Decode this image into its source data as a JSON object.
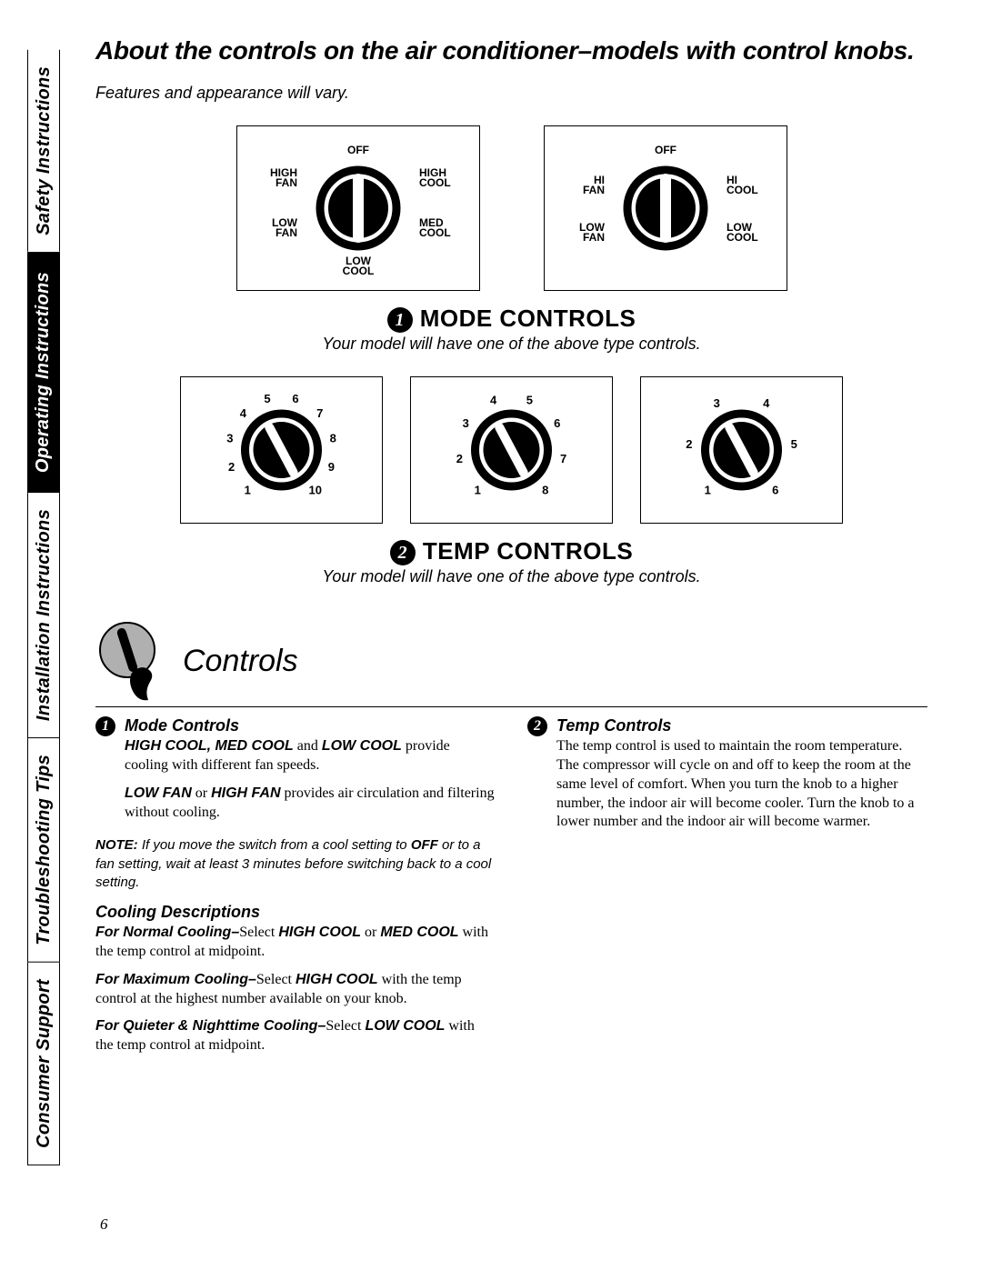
{
  "page_number": "6",
  "tabs": {
    "safety": "Safety Instructions",
    "operating": "Operating Instructions",
    "installation": "Installation Instructions",
    "troubleshooting": "Troubleshooting Tips",
    "consumer": "Consumer Support"
  },
  "title": "About the controls on the air conditioner–models with control knobs.",
  "subtitle": "Features and appearance will vary.",
  "mode_controls": {
    "heading": "MODE CONTROLS",
    "num": "1",
    "sub": "Your model will have one of the above type controls.",
    "knob_a": {
      "off": "OFF",
      "high_fan": "HIGH\nFAN",
      "low_fan": "LOW\nFAN",
      "high_cool": "HIGH\nCOOL",
      "med_cool": "MED\nCOOL",
      "low_cool": "LOW\nCOOL"
    },
    "knob_b": {
      "off": "OFF",
      "hi_fan": "HI\nFAN",
      "low_fan": "LOW\nFAN",
      "hi_cool": "HI\nCOOL",
      "low_cool": "LOW\nCOOL"
    }
  },
  "temp_controls": {
    "heading": "TEMP CONTROLS",
    "num": "2",
    "sub": "Your model will have one of the above type controls.",
    "dial_10": [
      "1",
      "2",
      "3",
      "4",
      "5",
      "6",
      "7",
      "8",
      "9",
      "10"
    ],
    "dial_8": [
      "1",
      "2",
      "3",
      "4",
      "5",
      "6",
      "7",
      "8"
    ],
    "dial_6": [
      "1",
      "2",
      "3",
      "4",
      "5",
      "6"
    ]
  },
  "controls_section": {
    "title": "Controls",
    "col1": {
      "num": "1",
      "h": "Mode Controls",
      "p1_a": "HIGH COOL, MED COOL",
      "p1_b": " and ",
      "p1_c": "LOW COOL",
      "p1_d": " provide cooling with different fan speeds.",
      "p2_a": "LOW FAN",
      "p2_b": " or ",
      "p2_c": "HIGH FAN",
      "p2_d": " provides air circulation and filtering without cooling.",
      "note_a": "NOTE:",
      "note_b": " If you move the switch from a cool setting to ",
      "note_c": "OFF",
      "note_d": " or to a fan setting, wait at least 3 minutes before switching back to a cool setting.",
      "cooling_h": "Cooling Descriptions",
      "c1_a": "For Normal Cooling–",
      "c1_b": "Select ",
      "c1_c": "HIGH COOL",
      "c1_d": " or ",
      "c1_e": "MED COOL",
      "c1_f": " with the temp control at midpoint.",
      "c2_a": "For Maximum Cooling–",
      "c2_b": "Select ",
      "c2_c": "HIGH COOL",
      "c2_d": " with the temp control at the highest number available on your knob.",
      "c3_a": "For Quieter & Nighttime Cooling–",
      "c3_b": "Select ",
      "c3_c": "LOW COOL",
      "c3_d": " with the temp control at midpoint."
    },
    "col2": {
      "num": "2",
      "h": "Temp Controls",
      "p": "The temp control is used to maintain the room temperature. The compressor will cycle on and off to keep the room at the same level of comfort. When you turn the knob to a higher number, the indoor air will become cooler. Turn the knob to a lower number and the indoor air will become warmer."
    }
  },
  "style": {
    "bg": "#ffffff",
    "fg": "#000000",
    "knob_stroke_width": 8,
    "box_border": 1.5
  }
}
